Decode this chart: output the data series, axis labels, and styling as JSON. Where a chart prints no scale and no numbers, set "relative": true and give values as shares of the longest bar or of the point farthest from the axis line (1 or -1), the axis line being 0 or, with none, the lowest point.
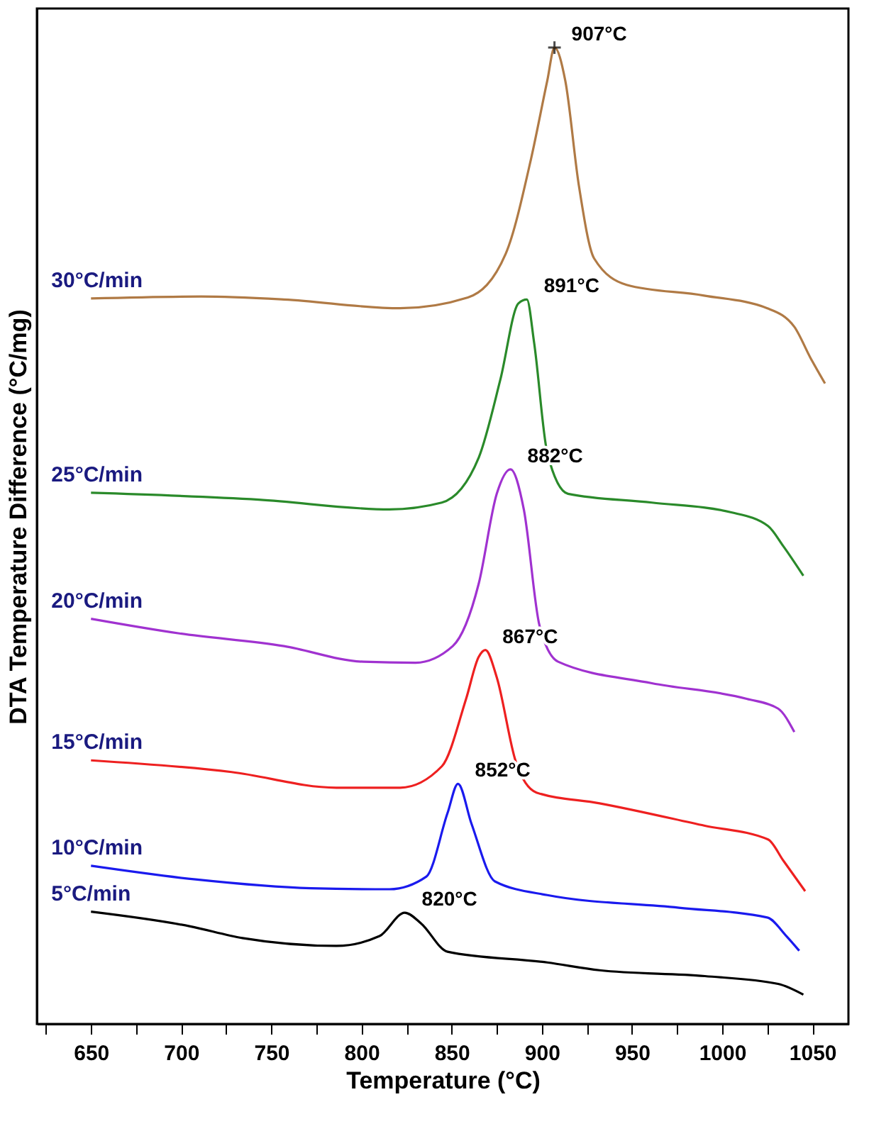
{
  "chart_data": {
    "type": "line",
    "relative": true,
    "xlabel": "Temperature (°C)",
    "ylabel": "DTA Temperature Difference (°C/mg)",
    "xlim": [
      620,
      1070
    ],
    "xticks": [
      {
        "value": 625,
        "label": null
      },
      650,
      {
        "value": 675,
        "label": null
      },
      700,
      {
        "value": 725,
        "label": null
      },
      750,
      {
        "value": 775,
        "label": null
      },
      800,
      {
        "value": 825,
        "label": null
      },
      850,
      {
        "value": 875,
        "label": null
      },
      900,
      {
        "value": 925,
        "label": null
      },
      950,
      {
        "value": 975,
        "label": null
      },
      1000,
      {
        "value": 1025,
        "label": null
      },
      1050
    ],
    "line_style": "solid",
    "series": [
      {
        "name": "30°C/min",
        "color": "#b07a45",
        "x": [
          650,
          711,
          757,
          821.5,
          859,
          880,
          894,
          903,
          907,
          913,
          920.5,
          929,
          947,
          990,
          1025,
          1040,
          1049,
          1057
        ],
        "values": [
          0.743,
          0.745,
          0.742,
          0.733,
          0.744,
          0.789,
          0.886,
          0.966,
          1.0,
          0.966,
          0.859,
          0.784,
          0.757,
          0.746,
          0.733,
          0.714,
          0.682,
          0.656
        ]
      },
      {
        "name": "25°C/min",
        "color": "#2a8a2a",
        "x": [
          650,
          743,
          815.5,
          844.5,
          865,
          877,
          887,
          891.7,
          895.7,
          903,
          914.5,
          961,
          1005,
          1025.4,
          1034,
          1045
        ],
        "values": [
          0.544,
          0.537,
          0.527,
          0.534,
          0.58,
          0.66,
          0.738,
          0.742,
          0.698,
          0.585,
          0.543,
          0.534,
          0.524,
          0.51,
          0.489,
          0.459
        ]
      },
      {
        "name": "20°C/min",
        "color": "#a032d0",
        "x": [
          650,
          699,
          757,
          801,
          830,
          850.6,
          865,
          875,
          882.6,
          890,
          898.7,
          909,
          961,
          1013.6,
          1031,
          1040
        ],
        "values": [
          0.415,
          0.4,
          0.387,
          0.371,
          0.37,
          0.387,
          0.451,
          0.543,
          0.568,
          0.527,
          0.408,
          0.371,
          0.349,
          0.333,
          0.323,
          0.299
        ]
      },
      {
        "name": "15°C/min",
        "color": "#ee2020",
        "x": [
          650,
          728,
          786,
          821.5,
          844.6,
          858,
          865,
          868.7,
          875,
          885.5,
          897,
          932,
          990.4,
          1025.4,
          1034,
          1046
        ],
        "values": [
          0.27,
          0.258,
          0.242,
          0.242,
          0.264,
          0.333,
          0.376,
          0.383,
          0.355,
          0.269,
          0.237,
          0.226,
          0.203,
          0.189,
          0.167,
          0.136
        ]
      },
      {
        "name": "10°C/min",
        "color": "#1a1aee",
        "x": [
          650,
          708,
          772,
          815.5,
          836,
          847.7,
          853.5,
          861,
          874,
          903,
          976,
          1025,
          1035.6,
          1042.7
        ],
        "values": [
          0.162,
          0.148,
          0.139,
          0.138,
          0.151,
          0.216,
          0.246,
          0.205,
          0.146,
          0.132,
          0.119,
          0.109,
          0.09,
          0.075
        ]
      },
      {
        "name": "5°C/min",
        "color": "#000000",
        "x": [
          650,
          705,
          734,
          786,
          810,
          824,
          833,
          847.7,
          903,
          932,
          990.4,
          1031,
          1045
        ],
        "values": [
          0.115,
          0.1,
          0.088,
          0.08,
          0.09,
          0.114,
          0.103,
          0.074,
          0.063,
          0.055,
          0.049,
          0.041,
          0.03
        ]
      },
      {
        "type": "scatter",
        "marker": "cross",
        "color": "#000000",
        "x": [
          907
        ],
        "values": [
          1.0
        ]
      }
    ],
    "annotations": [
      {
        "text": "907°C",
        "x": 907,
        "y": 1.0
      },
      {
        "text": "891°C",
        "x": 891.7,
        "y": 0.742
      },
      {
        "text": "882°C",
        "x": 882.6,
        "y": 0.568
      },
      {
        "text": "867°C",
        "x": 868.7,
        "y": 0.383
      },
      {
        "text": "852°C",
        "x": 853.5,
        "y": 0.246
      },
      {
        "text": "820°C",
        "x": 824,
        "y": 0.114
      }
    ]
  }
}
